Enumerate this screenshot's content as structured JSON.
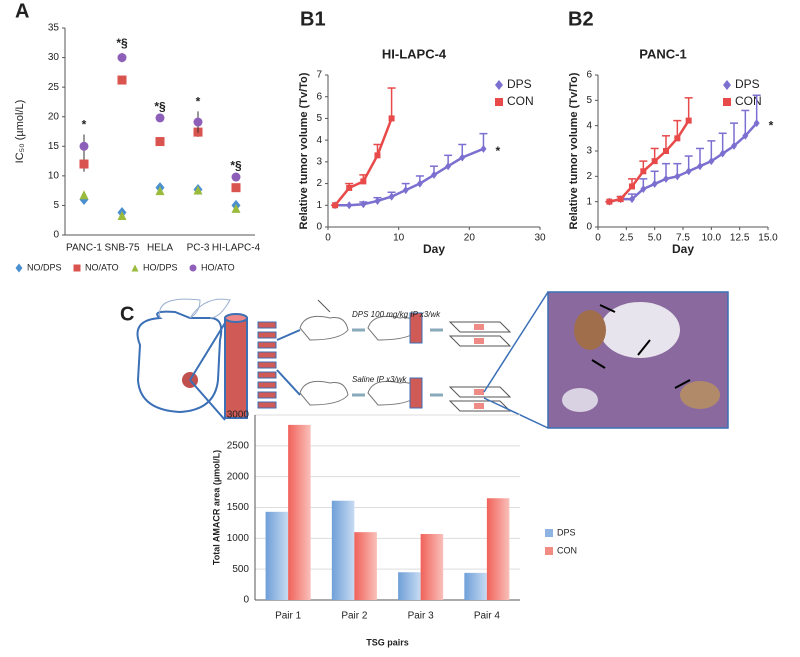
{
  "chart_data": [
    {
      "type": "scatter",
      "panel_label": "A",
      "y_label": "IC₅₀ (µmol/L)",
      "categories": [
        "PANC-1",
        "SNB-75",
        "HELA",
        "PC-3",
        "HI-LAPC-4"
      ],
      "annotations": [
        "*",
        "*§",
        "*§",
        "*",
        "*§"
      ],
      "ylim": [
        0,
        35
      ],
      "yticks": [
        0,
        5,
        10,
        15,
        20,
        25,
        30,
        35
      ],
      "grid": false,
      "legend": "bottom",
      "series": [
        {
          "name": "NO/DPS",
          "color": "#4a8fd0",
          "marker": "diamond",
          "values": [
            6,
            3.8,
            8,
            7.7,
            5
          ]
        },
        {
          "name": "NO/ATO",
          "color": "#d9534f",
          "marker": "square",
          "values": [
            12,
            26.2,
            15.8,
            17.4,
            8
          ],
          "errors": [
            1.3,
            0.5,
            0.6,
            0.8,
            0.3
          ]
        },
        {
          "name": "HO/DPS",
          "color": "#9bbb3c",
          "marker": "triangle",
          "values": [
            6.8,
            3.3,
            7.5,
            7.6,
            4.5
          ]
        },
        {
          "name": "HO/ATO",
          "color": "#8e5fb8",
          "marker": "circle",
          "values": [
            15,
            30,
            19.8,
            19.1,
            9.8
          ],
          "errors": [
            2,
            0.8,
            0.3,
            1.8,
            0.3
          ]
        }
      ]
    },
    {
      "type": "line",
      "panel_label": "B1",
      "title": "HI-LAPC-4",
      "x_label": "Day",
      "y_label": "Relative tumor volume (Tv/To)",
      "annotation": "*",
      "xlim": [
        0,
        30
      ],
      "xticks": [
        0,
        10,
        20,
        30
      ],
      "ylim": [
        0,
        7
      ],
      "yticks": [
        0,
        1,
        2,
        3,
        4,
        5,
        6,
        7
      ],
      "legend": "upper right",
      "series": [
        {
          "name": "DPS",
          "color": "#7b6fd0",
          "marker": "diamond",
          "x": [
            1,
            3,
            5,
            7,
            9,
            11,
            13,
            15,
            17,
            19,
            22
          ],
          "values": [
            1,
            1,
            1.05,
            1.2,
            1.4,
            1.7,
            2,
            2.4,
            2.8,
            3.2,
            3.6
          ],
          "errors": [
            0,
            0,
            0.1,
            0.15,
            0.2,
            0.3,
            0.35,
            0.4,
            0.5,
            0.6,
            0.7
          ]
        },
        {
          "name": "CON",
          "color": "#e84a4a",
          "marker": "square",
          "x": [
            1,
            3,
            5,
            7,
            9
          ],
          "values": [
            1,
            1.8,
            2.1,
            3.3,
            5
          ],
          "errors": [
            0,
            0.2,
            0.3,
            0.5,
            1.4
          ]
        }
      ]
    },
    {
      "type": "line",
      "panel_label": "B2",
      "title": "PANC-1",
      "x_label": "Day",
      "y_label": "Relative tumor volume (Tv/To)",
      "annotation": "*",
      "xlim": [
        0,
        15
      ],
      "xticks": [
        0,
        2.5,
        {
          "value": 5,
          "label": "5.0"
        },
        7.5,
        {
          "value": 10,
          "label": "10.0"
        },
        12.5,
        {
          "value": 15,
          "label": "15.0"
        }
      ],
      "ylim": [
        0,
        6
      ],
      "yticks": [
        0,
        1,
        2,
        3,
        4,
        5,
        6
      ],
      "legend": "upper right",
      "series": [
        {
          "name": "DPS",
          "color": "#7b6fd0",
          "marker": "diamond",
          "x": [
            1,
            2,
            3,
            4,
            5,
            6,
            7,
            8,
            9,
            10,
            11,
            12,
            13,
            14
          ],
          "values": [
            1,
            1.1,
            1.1,
            1.5,
            1.7,
            1.9,
            2,
            2.2,
            2.4,
            2.6,
            2.9,
            3.2,
            3.6,
            4.1
          ],
          "errors": [
            0,
            0.1,
            0.2,
            0.4,
            0.5,
            0.6,
            0.5,
            0.6,
            0.7,
            0.8,
            0.8,
            0.9,
            1,
            1.1
          ]
        },
        {
          "name": "CON",
          "color": "#e84a4a",
          "marker": "square",
          "x": [
            1,
            2,
            3,
            4,
            5,
            6,
            7,
            8
          ],
          "values": [
            1,
            1.1,
            1.6,
            2.2,
            2.6,
            3,
            3.5,
            4.2
          ],
          "errors": [
            0,
            0.1,
            0.3,
            0.4,
            0.5,
            0.6,
            0.7,
            0.9
          ]
        }
      ]
    },
    {
      "type": "bar",
      "panel_label": "C",
      "x_label": "TSG pairs",
      "y_label": "Total AMACR area (µmol/L)",
      "categories": [
        "Pair 1",
        "Pair 2",
        "Pair 3",
        "Pair 4"
      ],
      "ylim": [
        0,
        3000
      ],
      "yticks": [
        0,
        500,
        1000,
        1500,
        2000,
        2500,
        3000
      ],
      "grid": true,
      "legend": "right",
      "series": [
        {
          "name": "DPS",
          "color": "#8db4e2",
          "values": [
            1430,
            1610,
            450,
            440
          ]
        },
        {
          "name": "CON",
          "color": "#f28b82",
          "values": [
            2840,
            1100,
            1070,
            1650
          ]
        }
      ]
    }
  ],
  "diagram": {
    "dps_text": "DPS 100 mg/kg IP x3/wk",
    "saline_text": "Saline IP x3/wk"
  }
}
